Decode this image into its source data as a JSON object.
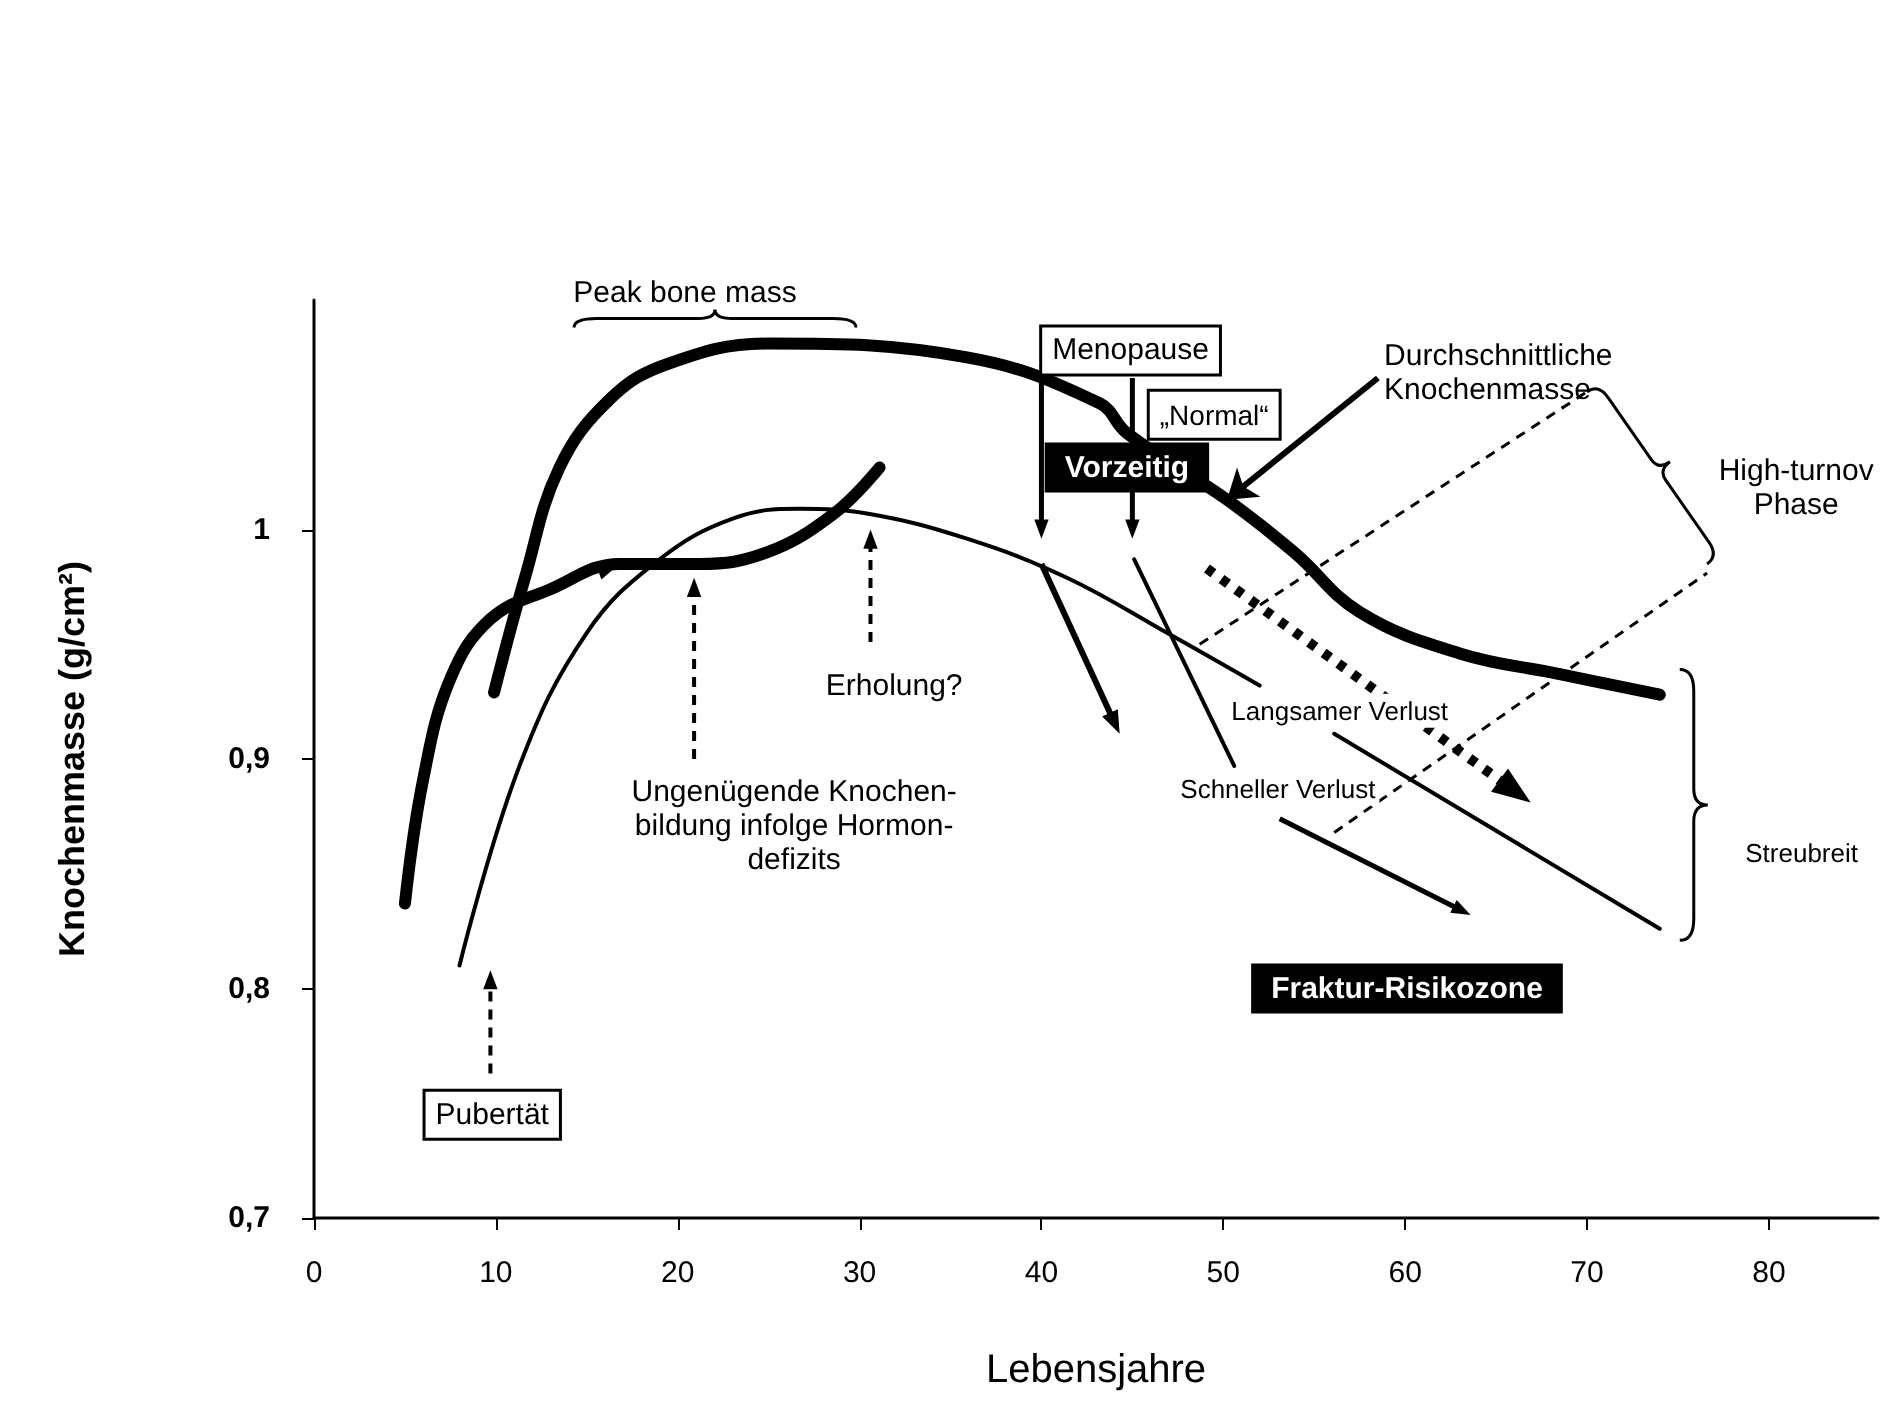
{
  "chart_data": {
    "type": "line",
    "xlabel": "Lebensjahre",
    "ylabel": "Knochenmasse (g/cm²)",
    "xlim": [
      0,
      86
    ],
    "ylim": [
      0.7,
      1.1
    ],
    "xticks": [
      0,
      10,
      20,
      30,
      40,
      50,
      60,
      70,
      80
    ],
    "yticks": [
      {
        "value": 0.7,
        "label": "0,7"
      },
      {
        "value": 0.8,
        "label": "0,8"
      },
      {
        "value": 0.9,
        "label": "0,9"
      },
      {
        "value": 1,
        "label": "1"
      }
    ],
    "grid": false,
    "marker": "none",
    "line_style": "solid",
    "series": [
      {
        "color": "#000000",
        "x": [
          9.9,
          11.6,
          13.5,
          16.3,
          19.4,
          24.9,
          35.9,
          43.2,
          44.7,
          50.2,
          53.9,
          57.5,
          63,
          68.5,
          74
        ],
        "values": [
          0.929,
          0.979,
          1.027,
          1.057,
          1.072,
          1.081,
          1.075,
          1.055,
          1.042,
          1.013,
          0.99,
          0.964,
          0.946,
          0.937,
          0.928
        ]
      },
      {
        "color": "#000000",
        "x": [
          5,
          6,
          7.5,
          9.7,
          13,
          16.8,
          21.2,
          24.9,
          28.6,
          31.1
        ],
        "values": [
          0.837,
          0.891,
          0.935,
          0.961,
          0.974,
          0.985,
          0.985,
          0.99,
          1.007,
          1.027
        ]
      },
      {
        "color": "#000000",
        "x": [
          8,
          11.3,
          15,
          19,
          23.1,
          26.7,
          30.4,
          35.9,
          41.4,
          46.9,
          52,
          54,
          56.1,
          74
        ],
        "values": [
          0.81,
          0.897,
          0.955,
          0.987,
          1.005,
          1.009,
          1.007,
          0.996,
          0.979,
          0.955,
          0.932,
          null,
          0.911,
          0.826
        ]
      },
      {
        "color": "#000000",
        "x": [
          45.1,
          50.6
        ],
        "values": [
          0.987,
          0.897
        ]
      }
    ],
    "annotations": [
      "Peak bone mass",
      "Menopause",
      "„Normal“",
      "Vorzeitig",
      {
        "text": "Durchschnittliche\nKnochenmasse",
        "x": 50.2,
        "y": 1.013
      },
      "High-turnov\nPhase",
      "Erholung?",
      "Ungenügende Knochen-\nbildung infolge Hormon-\ndefizits",
      "Langsamer Verlust",
      "Schneller Verlust",
      "Streubreit",
      "Fraktur-Risikozone",
      "Pubertät"
    ]
  }
}
